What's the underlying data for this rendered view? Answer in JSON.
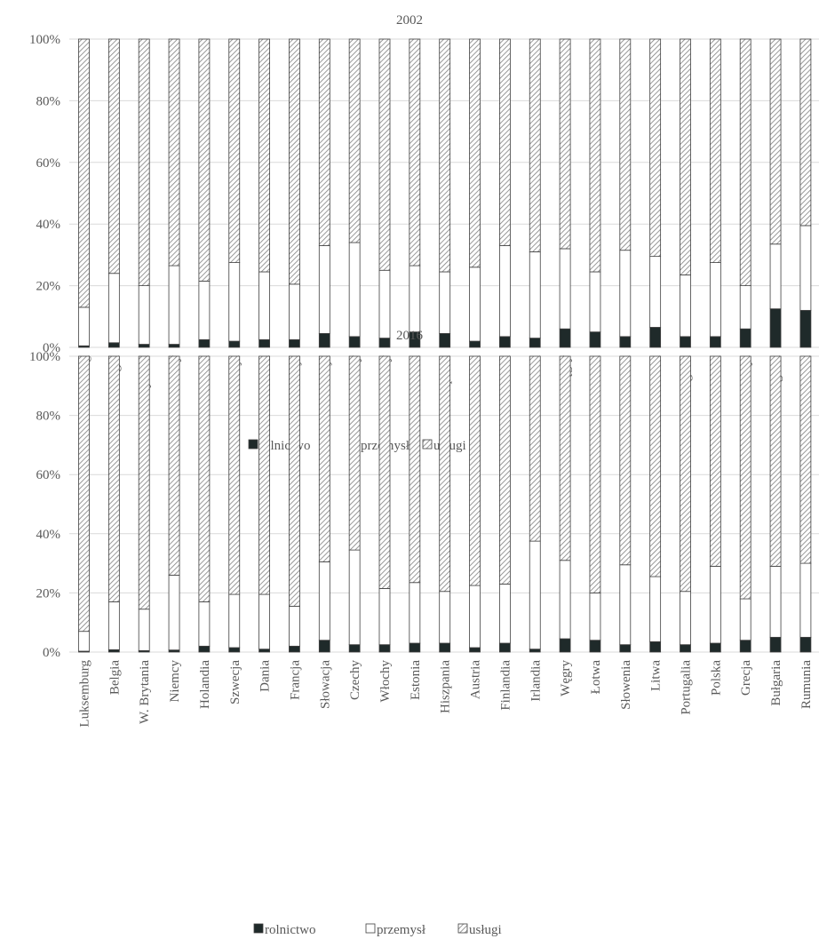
{
  "colors": {
    "rolnictwo": "#1f2a2a",
    "przemysl": "#ffffff",
    "uslugi_hatch": "#7f7f7f",
    "gridline": "#d9d9d9",
    "bar_outline": "#404040",
    "text": "#595959"
  },
  "chart_data": [
    {
      "type": "bar",
      "stacked": true,
      "percent": true,
      "title": "2002",
      "categories": [
        "Luksemburg",
        "Belgia",
        "W. Brytania",
        "Niemcy",
        "Holandia",
        "Szwecja",
        "Dania",
        "Francja",
        "Słowacja",
        "Czechy",
        "Włochy",
        "Estonia",
        "Hiszpania",
        "Austria",
        "Finlandia",
        "Irlandia",
        "Węgry",
        "Łotwa",
        "Słowenia",
        "Litwa",
        "Portugalia",
        "Polska",
        "Grecja",
        "Bułgaria",
        "Rumunia"
      ],
      "series": [
        {
          "name": "rolnictwo",
          "pattern": "solid",
          "values": [
            0.5,
            1.5,
            1,
            1,
            2.5,
            2,
            2.5,
            2.5,
            4.5,
            3.5,
            3,
            5,
            4.5,
            2,
            3.5,
            3,
            6,
            5,
            3.5,
            6.5,
            3.5,
            3.5,
            6,
            12.5,
            12
          ]
        },
        {
          "name": "przemysł",
          "pattern": "blank",
          "values": [
            12.5,
            22.5,
            19,
            25.5,
            19,
            25.5,
            22,
            18,
            28.5,
            30.5,
            22,
            21.5,
            20,
            24,
            29.5,
            28,
            26,
            19.5,
            28,
            23,
            20,
            24,
            14,
            21,
            27.5
          ]
        },
        {
          "name": "usługi",
          "pattern": "hatched",
          "values": [
            87,
            76,
            80,
            73.5,
            78.5,
            72.5,
            75.5,
            79.5,
            67,
            66,
            75,
            73.5,
            75.5,
            74,
            67,
            69,
            68,
            75.5,
            68.5,
            70.5,
            76.5,
            72.5,
            80,
            66.5,
            60.5
          ]
        }
      ],
      "yticks": [
        "0%",
        "20%",
        "40%",
        "60%",
        "80%",
        "100%"
      ],
      "ylim": [
        0,
        100
      ],
      "grid": true,
      "legend": "bottom"
    },
    {
      "type": "bar",
      "stacked": true,
      "percent": true,
      "title": "2016",
      "categories": [
        "Luksemburg",
        "Belgia",
        "W. Brytania",
        "Niemcy",
        "Holandia",
        "Szwecja",
        "Dania",
        "Francja",
        "Słowacja",
        "Czechy",
        "Włochy",
        "Estonia",
        "Hiszpania",
        "Austria",
        "Finlandia",
        "Irlandia",
        "Węgry",
        "Łotwa",
        "Słowenia",
        "Litwa",
        "Portugalia",
        "Polska",
        "Grecja",
        "Bułgaria",
        "Rumunia"
      ],
      "series": [
        {
          "name": "rolnictwo",
          "pattern": "solid",
          "values": [
            0.3,
            0.8,
            0.5,
            0.7,
            2,
            1.5,
            1,
            2,
            4,
            2.5,
            2.5,
            3,
            3,
            1.5,
            3,
            1,
            4.5,
            4,
            2.5,
            3.5,
            2.5,
            3,
            4,
            5,
            5
          ]
        },
        {
          "name": "przemysł",
          "pattern": "blank",
          "values": [
            6.7,
            16.2,
            14,
            25.3,
            15,
            18,
            18.5,
            13.5,
            26.5,
            32,
            19,
            20.5,
            17.5,
            21,
            20,
            36.5,
            26.5,
            16,
            27,
            22,
            18,
            26,
            14,
            24,
            25
          ]
        },
        {
          "name": "usługi",
          "pattern": "hatched",
          "values": [
            93,
            83,
            85.5,
            74,
            83,
            80.5,
            80.5,
            84.5,
            69.5,
            65.5,
            78.5,
            76.5,
            79.5,
            77.5,
            77,
            62.5,
            69,
            80,
            70.5,
            74.5,
            79.5,
            71,
            82,
            71,
            70
          ]
        }
      ],
      "yticks": [
        "0%",
        "20%",
        "40%",
        "60%",
        "80%",
        "100%"
      ],
      "ylim": [
        0,
        100
      ],
      "grid": true,
      "legend": "bottom"
    }
  ]
}
